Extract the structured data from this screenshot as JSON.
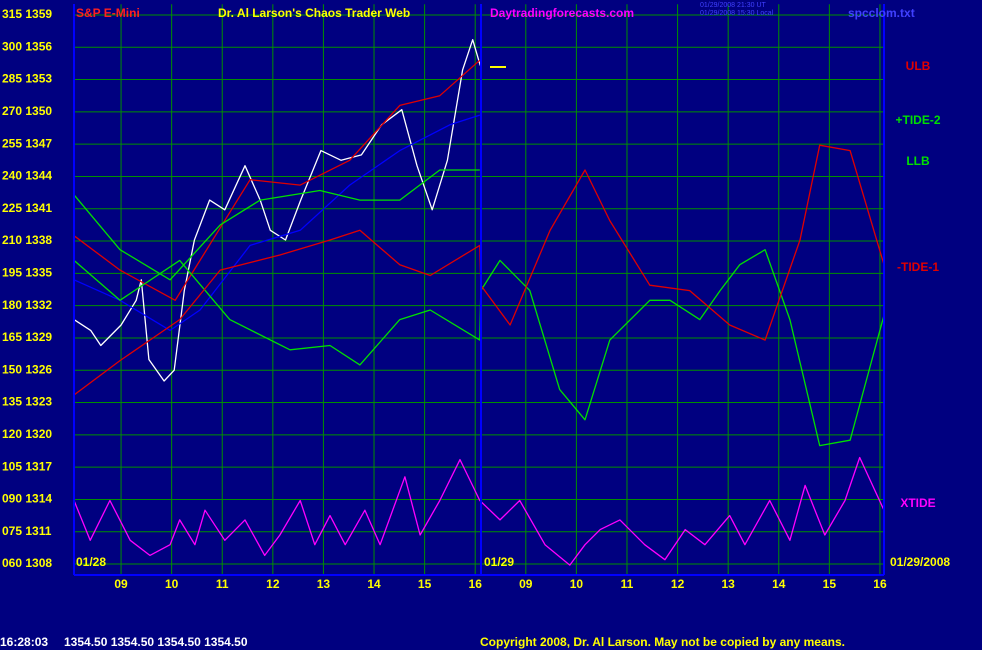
{
  "chart_data": {
    "type": "line",
    "instrument": "S&P E-Mini",
    "title": "Dr. Al Larson's Chaos Trader Web",
    "website": "Daytradingforecasts.com",
    "timestamp_lines": [
      "01/29/2008 21:30 UT",
      "01/29/2008 15:30 Local"
    ],
    "file_name": "spcclom.txt",
    "date_labels": [
      "01/28",
      "01/29",
      "01/29/2008"
    ],
    "quote_time": "16:28:03",
    "quote_values": "1354.50 1354.50 1354.50 1354.50",
    "copyright": "Copyright 2008, Dr. Al Larson. May not be copied by any means.",
    "grid": true,
    "xlim": [
      8.07,
      24.08
    ],
    "xticks": [
      {
        "value": 9,
        "label": "09"
      },
      10,
      11,
      12,
      13,
      14,
      15,
      16,
      {
        "value": 17,
        "label": "09"
      },
      {
        "value": 18,
        "label": "10"
      },
      {
        "value": 19,
        "label": "11"
      },
      {
        "value": 20,
        "label": "12"
      },
      {
        "value": 21,
        "label": "13"
      },
      {
        "value": 22,
        "label": "14"
      },
      {
        "value": 23,
        "label": "15"
      },
      {
        "value": 24,
        "label": "16"
      }
    ],
    "ylim": [
      1307,
      1360
    ],
    "yticks": [
      {
        "value": 1308,
        "label": "060 1308"
      },
      {
        "value": 1311,
        "label": "075 1311"
      },
      {
        "value": 1314,
        "label": "090 1314"
      },
      {
        "value": 1317,
        "label": "105 1317"
      },
      {
        "value": 1320,
        "label": "120 1320"
      },
      {
        "value": 1323,
        "label": "135 1323"
      },
      {
        "value": 1326,
        "label": "150 1326"
      },
      {
        "value": 1329,
        "label": "165 1329"
      },
      {
        "value": 1332,
        "label": "180 1332"
      },
      {
        "value": 1335,
        "label": "195 1335"
      },
      {
        "value": 1338,
        "label": "210 1338"
      },
      {
        "value": 1341,
        "label": "225 1341"
      },
      {
        "value": 1344,
        "label": "240 1344"
      },
      {
        "value": 1347,
        "label": "255 1347"
      },
      {
        "value": 1350,
        "label": "270 1350"
      },
      {
        "value": 1353,
        "label": "285 1353"
      },
      {
        "value": 1356,
        "label": "300 1356"
      },
      {
        "value": 1359,
        "label": "315 1359"
      }
    ],
    "series": [
      {
        "color": "#ffffff",
        "x": [
          8.07,
          8.4,
          8.6,
          9.0,
          9.3,
          9.4,
          9.55,
          9.85,
          10.05,
          10.25,
          10.45,
          10.75,
          11.05,
          11.45,
          11.75,
          11.95,
          12.25,
          12.55,
          12.95,
          13.35,
          13.75,
          14.15,
          14.55,
          14.85,
          15.15,
          15.45,
          15.75,
          15.95,
          16.1
        ],
        "values": [
          1330.7,
          1329.7,
          1328.3,
          1330.2,
          1332.5,
          1334.4,
          1327,
          1325,
          1326,
          1333.4,
          1338.1,
          1341.8,
          1340.9,
          1345,
          1341.8,
          1339,
          1338.1,
          1341.8,
          1346.4,
          1345.5,
          1346,
          1348.8,
          1350.2,
          1345,
          1340.9,
          1345.5,
          1353.9,
          1356.7,
          1354.3
        ]
      },
      {
        "color": "#0000ff",
        "x": [
          8.07,
          8.98,
          9.97,
          10.56,
          11.55,
          12.54,
          13.52,
          14.51,
          15.5,
          16.09
        ],
        "values": [
          1334.4,
          1332.5,
          1329.7,
          1331.6,
          1337.6,
          1339,
          1343.2,
          1346.4,
          1348.8,
          1349.7
        ]
      },
      {
        "name": "ULB",
        "color": "#e00000",
        "x": [
          8.07,
          8.98,
          10.07,
          10.56,
          11.55,
          12.54,
          13.52,
          14.51,
          15.3,
          16.09
        ],
        "values": [
          1338.5,
          1335.3,
          1332.5,
          1336.2,
          1343.7,
          1343.2,
          1345.5,
          1350.6,
          1351.5,
          1354.8
        ]
      },
      {
        "name": "LLB",
        "color": "#00e000",
        "x": [
          8.07,
          8.98,
          9.97,
          10.96,
          11.75,
          12.93,
          13.72,
          14.51,
          15.3,
          16.09
        ],
        "values": [
          1342.3,
          1337.2,
          1334.4,
          1339.5,
          1341.8,
          1342.7,
          1341.8,
          1341.8,
          1344.6,
          1344.6
        ]
      },
      {
        "name": "+TIDE-2",
        "color": "#00e000",
        "x": [
          8.07,
          8.98,
          10.16,
          11.15,
          12.34,
          13.13,
          13.72,
          14.51,
          15.11,
          16.09,
          16.11,
          16.49,
          17.08,
          17.67,
          18.17,
          18.66,
          19.45,
          19.85,
          20.44,
          20.84,
          21.23,
          21.73,
          22.22,
          22.81,
          23.41,
          24.08
        ],
        "values": [
          1336.2,
          1332.5,
          1336.2,
          1330.7,
          1327.9,
          1328.3,
          1326.5,
          1330.7,
          1331.6,
          1328.8,
          1333.4,
          1336.2,
          1333.4,
          1324.2,
          1321.4,
          1328.8,
          1332.5,
          1332.5,
          1330.7,
          1333.4,
          1335.8,
          1337.2,
          1330.7,
          1319.0,
          1319.5,
          1331.1
        ]
      },
      {
        "name": "-TIDE-1",
        "color": "#e00000",
        "x": [
          8.07,
          8.98,
          10.16,
          10.96,
          12.14,
          13.13,
          13.72,
          14.51,
          15.11,
          16.09,
          16.11,
          16.69,
          17.48,
          18.17,
          18.66,
          19.45,
          20.24,
          21.03,
          21.73,
          22.42,
          22.81,
          23.41,
          24.08
        ],
        "values": [
          1323.7,
          1326.9,
          1330.7,
          1335.3,
          1336.7,
          1338.1,
          1339,
          1335.8,
          1334.8,
          1337.6,
          1333.9,
          1330.2,
          1339,
          1344.6,
          1339.9,
          1333.9,
          1333.4,
          1330.2,
          1328.8,
          1338.1,
          1346.9,
          1346.4,
          1335.8
        ]
      },
      {
        "name": "XTIDE",
        "color": "#ff00ff",
        "x": [
          8.07,
          8.39,
          8.78,
          9.18,
          9.57,
          9.97,
          10.16,
          10.46,
          10.66,
          11.05,
          11.45,
          11.84,
          12.14,
          12.54,
          12.83,
          13.13,
          13.43,
          13.82,
          14.12,
          14.61,
          14.91,
          15.3,
          15.7,
          16.09,
          16.49,
          16.88,
          17.38,
          17.87,
          18.17,
          18.47,
          18.86,
          19.35,
          19.75,
          20.15,
          20.54,
          21.03,
          21.33,
          21.82,
          22.22,
          22.52,
          22.91,
          23.31,
          23.6,
          24.08
        ],
        "values": [
          1313.9,
          1310.2,
          1313.9,
          1310.2,
          1308.8,
          1309.8,
          1312.1,
          1309.8,
          1313.0,
          1310.2,
          1312.1,
          1308.8,
          1310.7,
          1313.9,
          1309.8,
          1312.5,
          1309.8,
          1313.0,
          1309.8,
          1316.1,
          1310.7,
          1313.9,
          1317.7,
          1313.9,
          1312.1,
          1313.9,
          1309.8,
          1307.9,
          1309.8,
          1311.2,
          1312.1,
          1309.8,
          1308.4,
          1311.2,
          1309.8,
          1312.5,
          1309.8,
          1313.9,
          1310.2,
          1315.3,
          1310.7,
          1313.9,
          1317.9,
          1313.0
        ]
      }
    ]
  }
}
